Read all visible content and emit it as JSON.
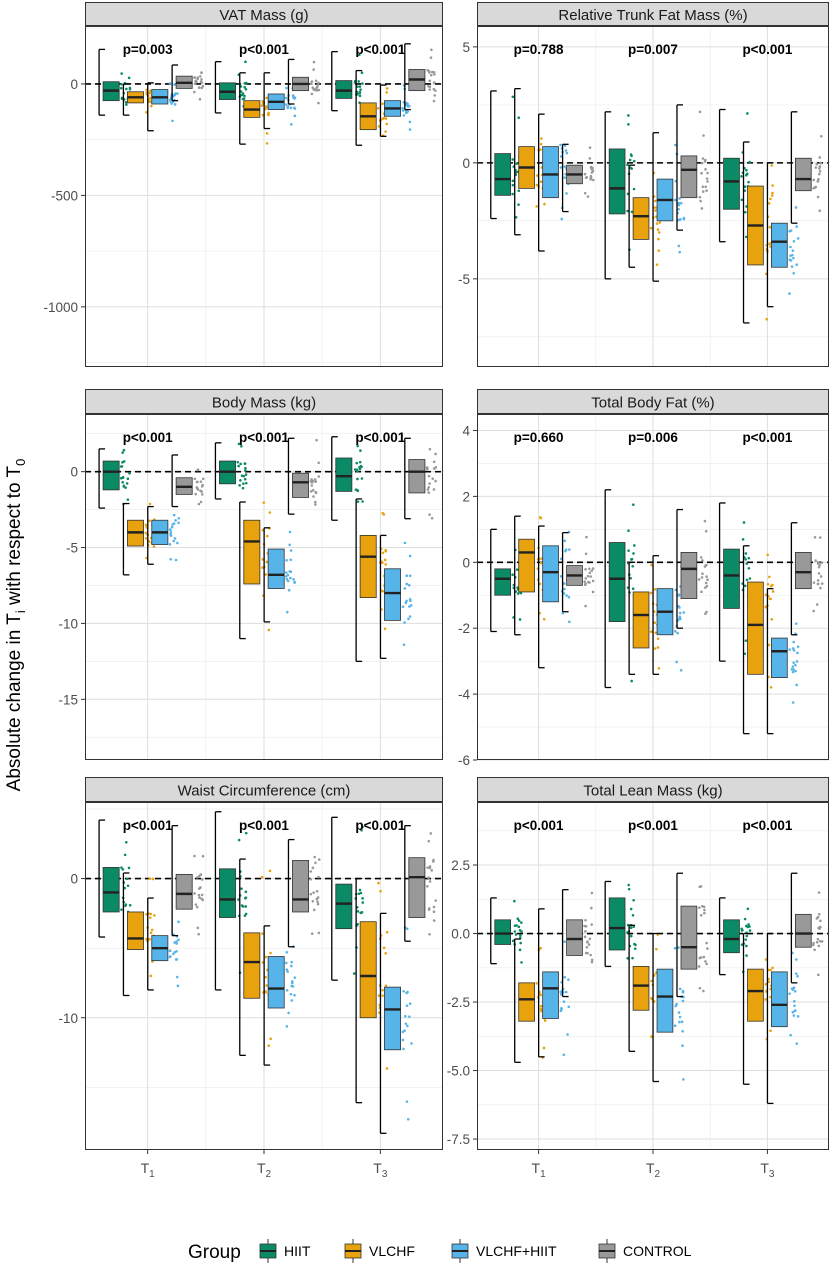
{
  "figure": {
    "ylabel_main": "Absolute change in T",
    "ylabel_sub_i": "i",
    "ylabel_mid": " with respect to T",
    "ylabel_sub_0": "0",
    "x_ticks": [
      {
        "base": "T",
        "sub": "1"
      },
      {
        "base": "T",
        "sub": "2"
      },
      {
        "base": "T",
        "sub": "3"
      }
    ],
    "legend": {
      "title": "Group",
      "items": [
        {
          "name": "HIIT",
          "color": "#0b8a66"
        },
        {
          "name": "VLCHF",
          "color": "#e8a20e"
        },
        {
          "name": "VLCHF+HIIT",
          "color": "#56b4e9"
        },
        {
          "name": "CONTROL",
          "color": "#999999"
        }
      ]
    }
  },
  "chart_data": [
    {
      "type": "box",
      "title": "VAT Mass (g)",
      "ylim": [
        -1270,
        260
      ],
      "yticks": [
        0,
        -500,
        -1000
      ],
      "pvalues": [
        "p=0.003",
        "p<0.001",
        "p<0.001"
      ],
      "boxes": [
        [
          {
            "q1": -75,
            "med": -30,
            "q3": 10,
            "lo": -140,
            "hi": 155
          },
          {
            "q1": -85,
            "med": -60,
            "q3": -35,
            "lo": -140,
            "hi": 0
          },
          {
            "q1": -90,
            "med": -60,
            "q3": -25,
            "lo": -210,
            "hi": 5
          },
          {
            "q1": -20,
            "med": 5,
            "q3": 35,
            "lo": -75,
            "hi": 85
          }
        ],
        [
          {
            "q1": -70,
            "med": -35,
            "q3": 5,
            "lo": -130,
            "hi": 100
          },
          {
            "q1": -150,
            "med": -115,
            "q3": -75,
            "lo": -270,
            "hi": 50
          },
          {
            "q1": -115,
            "med": -80,
            "q3": -45,
            "lo": -200,
            "hi": 50
          },
          {
            "q1": -30,
            "med": 0,
            "q3": 30,
            "lo": -90,
            "hi": 110
          }
        ],
        [
          {
            "q1": -65,
            "med": -30,
            "q3": 15,
            "lo": -120,
            "hi": 145
          },
          {
            "q1": -205,
            "med": -145,
            "q3": -85,
            "lo": -275,
            "hi": 60
          },
          {
            "q1": -145,
            "med": -110,
            "q3": -75,
            "lo": -235,
            "hi": -5
          },
          {
            "q1": -30,
            "med": 20,
            "q3": 65,
            "lo": -115,
            "hi": 180
          }
        ]
      ]
    },
    {
      "type": "box",
      "title": "Relative Trunk Fat Mass (%)",
      "ylim": [
        -8.8,
        5.9
      ],
      "yticks": [
        5,
        0,
        -5
      ],
      "pvalues": [
        "p=0.788",
        "p=0.007",
        "p<0.001"
      ],
      "boxes": [
        [
          {
            "q1": -1.4,
            "med": -0.7,
            "q3": 0.4,
            "lo": -2.4,
            "hi": 3.1
          },
          {
            "q1": -1.1,
            "med": -0.2,
            "q3": 0.7,
            "lo": -3.1,
            "hi": 3.2
          },
          {
            "q1": -1.5,
            "med": -0.5,
            "q3": 0.7,
            "lo": -3.8,
            "hi": 2.1
          },
          {
            "q1": -0.9,
            "med": -0.5,
            "q3": -0.1,
            "lo": -2.1,
            "hi": 0.8
          }
        ],
        [
          {
            "q1": -2.2,
            "med": -1.1,
            "q3": 0.6,
            "lo": -5.0,
            "hi": 2.2
          },
          {
            "q1": -3.3,
            "med": -2.3,
            "q3": -1.5,
            "lo": -4.5,
            "hi": -0.1
          },
          {
            "q1": -2.5,
            "med": -1.6,
            "q3": -0.7,
            "lo": -5.1,
            "hi": 1.3
          },
          {
            "q1": -1.5,
            "med": -0.3,
            "q3": 0.3,
            "lo": -2.9,
            "hi": 2.5
          }
        ],
        [
          {
            "q1": -2.0,
            "med": -0.8,
            "q3": 0.2,
            "lo": -3.4,
            "hi": 2.3
          },
          {
            "q1": -4.4,
            "med": -2.7,
            "q3": -1.0,
            "lo": -6.9,
            "hi": 0.9
          },
          {
            "q1": -4.5,
            "med": -3.4,
            "q3": -2.6,
            "lo": -6.2,
            "hi": 0.0
          },
          {
            "q1": -1.2,
            "med": -0.7,
            "q3": 0.2,
            "lo": -2.6,
            "hi": 2.2
          }
        ]
      ]
    },
    {
      "type": "box",
      "title": "Body Mass (kg)",
      "ylim": [
        -19,
        3.8
      ],
      "yticks": [
        0,
        -5,
        -10,
        -15
      ],
      "pvalues": [
        "p<0.001",
        "p<0.001",
        "p<0.001"
      ],
      "boxes": [
        [
          {
            "q1": -1.2,
            "med": 0.0,
            "q3": 0.7,
            "lo": -2.4,
            "hi": 1.5
          },
          {
            "q1": -4.9,
            "med": -4.0,
            "q3": -3.2,
            "lo": -6.8,
            "hi": -2.1
          },
          {
            "q1": -4.8,
            "med": -4.0,
            "q3": -3.2,
            "lo": -6.1,
            "hi": -2.3
          },
          {
            "q1": -1.5,
            "med": -1.0,
            "q3": -0.4,
            "lo": -2.3,
            "hi": 1.1
          }
        ],
        [
          {
            "q1": -0.8,
            "med": 0.0,
            "q3": 0.7,
            "lo": -1.8,
            "hi": 1.9
          },
          {
            "q1": -7.4,
            "med": -4.6,
            "q3": -3.2,
            "lo": -11.0,
            "hi": -2.0
          },
          {
            "q1": -7.7,
            "med": -6.8,
            "q3": -5.1,
            "lo": -9.9,
            "hi": -3.7
          },
          {
            "q1": -1.7,
            "med": -0.7,
            "q3": -0.1,
            "lo": -2.8,
            "hi": 2.2
          }
        ],
        [
          {
            "q1": -1.3,
            "med": -0.3,
            "q3": 0.9,
            "lo": -3.2,
            "hi": 2.3
          },
          {
            "q1": -8.3,
            "med": -5.6,
            "q3": -4.2,
            "lo": -12.5,
            "hi": -1.8
          },
          {
            "q1": -9.8,
            "med": -8.0,
            "q3": -6.4,
            "lo": -12.3,
            "hi": -4.2
          },
          {
            "q1": -1.4,
            "med": 0.0,
            "q3": 0.8,
            "lo": -3.1,
            "hi": 2.2
          }
        ]
      ]
    },
    {
      "type": "box",
      "title": "Total Body Fat (%)",
      "ylim": [
        -6,
        4.5
      ],
      "yticks": [
        4,
        2,
        0,
        -2,
        -4,
        -6
      ],
      "pvalues": [
        "p=0.660",
        "p=0.006",
        "p<0.001"
      ],
      "boxes": [
        [
          {
            "q1": -1.0,
            "med": -0.5,
            "q3": -0.2,
            "lo": -2.1,
            "hi": 1.0
          },
          {
            "q1": -0.9,
            "med": 0.3,
            "q3": 0.7,
            "lo": -2.2,
            "hi": 1.4
          },
          {
            "q1": -1.2,
            "med": -0.3,
            "q3": 0.5,
            "lo": -3.2,
            "hi": 1.1
          },
          {
            "q1": -0.7,
            "med": -0.4,
            "q3": -0.1,
            "lo": -1.5,
            "hi": 0.9
          }
        ],
        [
          {
            "q1": -1.8,
            "med": -0.5,
            "q3": 0.6,
            "lo": -3.8,
            "hi": 2.2
          },
          {
            "q1": -2.6,
            "med": -1.6,
            "q3": -0.9,
            "lo": -3.4,
            "hi": 0.0
          },
          {
            "q1": -2.2,
            "med": -1.5,
            "q3": -0.8,
            "lo": -3.4,
            "hi": 0.2
          },
          {
            "q1": -1.1,
            "med": -0.2,
            "q3": 0.3,
            "lo": -2.0,
            "hi": 1.6
          }
        ],
        [
          {
            "q1": -1.4,
            "med": -0.4,
            "q3": 0.4,
            "lo": -3.0,
            "hi": 1.8
          },
          {
            "q1": -3.4,
            "med": -1.9,
            "q3": -0.6,
            "lo": -5.2,
            "hi": 0.5
          },
          {
            "q1": -3.5,
            "med": -2.7,
            "q3": -2.3,
            "lo": -5.2,
            "hi": -0.8
          },
          {
            "q1": -0.8,
            "med": -0.3,
            "q3": 0.3,
            "lo": -2.2,
            "hi": 1.2
          }
        ]
      ]
    },
    {
      "type": "box",
      "title": "Waist Circumference (cm)",
      "ylim": [
        -19.5,
        5.5
      ],
      "yticks": [
        0,
        -10
      ],
      "pvalues": [
        "p<0.001",
        "p<0.001",
        "p<0.001"
      ],
      "boxes": [
        [
          {
            "q1": -2.4,
            "med": -1.0,
            "q3": 0.8,
            "lo": -4.2,
            "hi": 4.2
          },
          {
            "q1": -5.1,
            "med": -4.3,
            "q3": -2.4,
            "lo": -8.4,
            "hi": 0.4
          },
          {
            "q1": -5.9,
            "med": -5.0,
            "q3": -4.1,
            "lo": -8.0,
            "hi": -1.4
          },
          {
            "q1": -2.2,
            "med": -1.1,
            "q3": 0.3,
            "lo": -4.1,
            "hi": 3.8
          }
        ],
        [
          {
            "q1": -2.8,
            "med": -1.5,
            "q3": 0.7,
            "lo": -8.0,
            "hi": 4.8
          },
          {
            "q1": -8.6,
            "med": -6.0,
            "q3": -3.9,
            "lo": -12.7,
            "hi": 1.4
          },
          {
            "q1": -9.3,
            "med": -7.9,
            "q3": -5.6,
            "lo": -13.4,
            "hi": -3.4
          },
          {
            "q1": -2.4,
            "med": -1.5,
            "q3": 1.3,
            "lo": -4.9,
            "hi": 2.8
          }
        ],
        [
          {
            "q1": -3.6,
            "med": -1.8,
            "q3": -0.4,
            "lo": -7.3,
            "hi": 4.4
          },
          {
            "q1": -10.0,
            "med": -7.0,
            "q3": -3.1,
            "lo": -16.1,
            "hi": 0.0
          },
          {
            "q1": -12.3,
            "med": -9.4,
            "q3": -7.8,
            "lo": -18.3,
            "hi": -2.5
          },
          {
            "q1": -2.8,
            "med": 0.1,
            "q3": 1.5,
            "lo": -4.5,
            "hi": 3.8
          }
        ]
      ]
    },
    {
      "type": "box",
      "title": "Total Lean Mass (kg)",
      "ylim": [
        -7.9,
        4.8
      ],
      "yticks": [
        2.5,
        0.0,
        -2.5,
        -5.0,
        -7.5
      ],
      "ytick_labels": [
        "2.5",
        "0.0",
        "-2.5",
        "-5.0",
        "-7.5"
      ],
      "pvalues": [
        "p<0.001",
        "p<0.001",
        "p<0.001"
      ],
      "boxes": [
        [
          {
            "q1": -0.4,
            "med": 0.0,
            "q3": 0.5,
            "lo": -1.1,
            "hi": 1.3
          },
          {
            "q1": -3.2,
            "med": -2.4,
            "q3": -1.8,
            "lo": -4.7,
            "hi": -0.2
          },
          {
            "q1": -3.1,
            "med": -2.0,
            "q3": -1.4,
            "lo": -4.5,
            "hi": 0.9
          },
          {
            "q1": -0.8,
            "med": -0.2,
            "q3": 0.5,
            "lo": -2.3,
            "hi": 1.6
          }
        ],
        [
          {
            "q1": -0.6,
            "med": 0.2,
            "q3": 1.3,
            "lo": -1.2,
            "hi": 1.9
          },
          {
            "q1": -2.8,
            "med": -1.9,
            "q3": -1.2,
            "lo": -4.3,
            "hi": 0.3
          },
          {
            "q1": -3.6,
            "med": -2.3,
            "q3": -1.3,
            "lo": -5.4,
            "hi": 0.0
          },
          {
            "q1": -1.3,
            "med": -0.5,
            "q3": 1.0,
            "lo": -2.3,
            "hi": 2.2
          }
        ],
        [
          {
            "q1": -0.7,
            "med": -0.2,
            "q3": 0.5,
            "lo": -1.5,
            "hi": 1.3
          },
          {
            "q1": -3.2,
            "med": -2.1,
            "q3": -1.3,
            "lo": -5.5,
            "hi": 0.0
          },
          {
            "q1": -3.4,
            "med": -2.6,
            "q3": -1.4,
            "lo": -6.2,
            "hi": 0.0
          },
          {
            "q1": -0.5,
            "med": 0.0,
            "q3": 0.7,
            "lo": -1.8,
            "hi": 2.2
          }
        ]
      ]
    }
  ]
}
